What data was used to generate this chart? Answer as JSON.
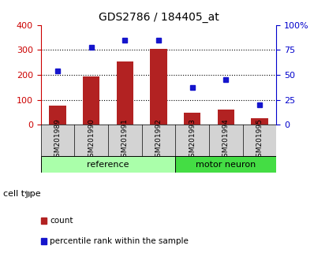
{
  "title": "GDS2786 / 184405_at",
  "categories": [
    "GSM201989",
    "GSM201990",
    "GSM201991",
    "GSM201992",
    "GSM201993",
    "GSM201994",
    "GSM201995"
  ],
  "counts": [
    75,
    193,
    255,
    303,
    48,
    60,
    25
  ],
  "percentiles": [
    54,
    78,
    85,
    85,
    37,
    45,
    20
  ],
  "ylim_left": [
    0,
    400
  ],
  "ylim_right": [
    0,
    100
  ],
  "yticks_left": [
    0,
    100,
    200,
    300,
    400
  ],
  "yticks_right": [
    0,
    25,
    50,
    75,
    100
  ],
  "ytick_labels_right": [
    "0",
    "25",
    "50",
    "75",
    "100%"
  ],
  "bar_color": "#B22222",
  "dot_color": "#1515CC",
  "cell_types": [
    {
      "label": "reference",
      "count": 4,
      "color": "#AAFFAA"
    },
    {
      "label": "motor neuron",
      "count": 3,
      "color": "#44DD44"
    }
  ],
  "left_axis_color": "#CC0000",
  "right_axis_color": "#0000CC",
  "legend_items": [
    {
      "label": "count",
      "color": "#B22222"
    },
    {
      "label": "percentile rank within the sample",
      "color": "#1515CC"
    }
  ],
  "cell_type_label": "cell type",
  "bar_width": 0.5
}
